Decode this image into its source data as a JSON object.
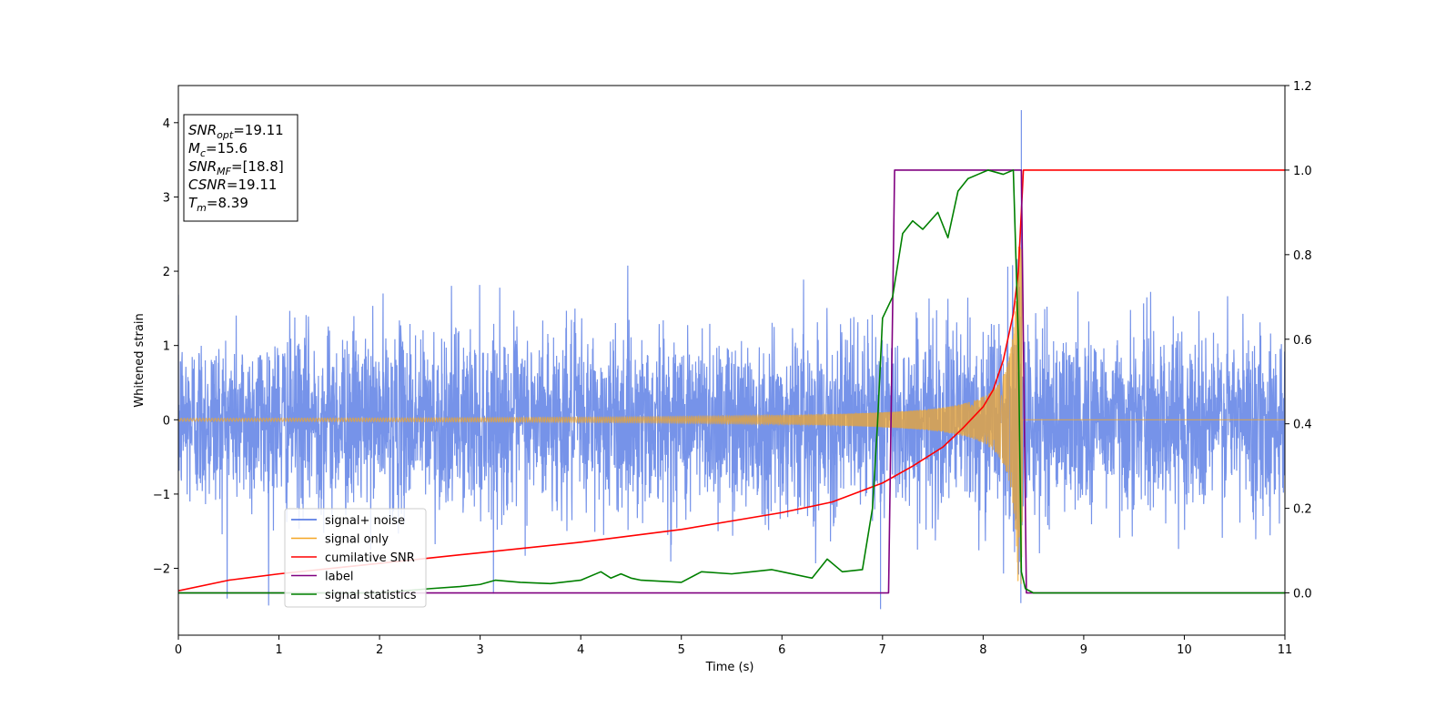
{
  "chart_data": {
    "type": "line",
    "xlabel": "Time (s)",
    "ylabel": "Whitened strain",
    "xlim": [
      0,
      11
    ],
    "ylim_left": [
      -2.9,
      4.5
    ],
    "ylim_right": [
      -0.1,
      1.2
    ],
    "x_ticks": [
      0,
      1,
      2,
      3,
      4,
      5,
      6,
      7,
      8,
      9,
      10,
      11
    ],
    "y_left_ticks": [
      -2,
      -1,
      0,
      1,
      2,
      3,
      4
    ],
    "y_right_ticks": [
      0.0,
      0.2,
      0.4,
      0.6,
      0.8,
      1.0,
      1.2
    ],
    "info_box": {
      "lines": [
        {
          "sym": "SNR",
          "sub": "opt",
          "rest": "=19.11"
        },
        {
          "sym": "M",
          "sub": "c",
          "rest": "=15.6"
        },
        {
          "sym": "SNR",
          "sub": "MF",
          "rest": "=[18.8]"
        },
        {
          "sym": "CSNR",
          "sub": "",
          "rest": "=19.11"
        },
        {
          "sym": "T",
          "sub": "m",
          "rest": "=8.39"
        }
      ]
    },
    "legend": {
      "placement": "lower-left",
      "entries": [
        {
          "label": "signal+ noise",
          "color": "#4169e1"
        },
        {
          "label": "signal only",
          "color": "#f5a623"
        },
        {
          "label": "cumilative SNR",
          "color": "#ff0000"
        },
        {
          "label": "label",
          "color": "#800080"
        },
        {
          "label": "signal statistics",
          "color": "#008000"
        }
      ]
    },
    "series": [
      {
        "name": "signal+ noise",
        "axis": "left",
        "color": "#4169e1",
        "description_values": {
          "noise_std": 0.6,
          "max_spike": 4.17,
          "spike_time": 8.38,
          "min_spike": -2.55
        }
      },
      {
        "name": "signal only",
        "axis": "left",
        "color": "#f5a623",
        "chirp": {
          "start": 0.0,
          "merger_time": 8.39,
          "initial_amplitude": 0.02,
          "peak_amplitude": 2.4
        }
      },
      {
        "name": "cumilative SNR",
        "axis": "right",
        "color": "#ff0000",
        "x": [
          0,
          0.5,
          1,
          2,
          3,
          4,
          5,
          6,
          6.5,
          7,
          7.3,
          7.6,
          7.8,
          8.0,
          8.1,
          8.2,
          8.3,
          8.35,
          8.39,
          8.4,
          11
        ],
        "y": [
          0.005,
          0.03,
          0.045,
          0.07,
          0.095,
          0.12,
          0.15,
          0.19,
          0.215,
          0.26,
          0.3,
          0.345,
          0.39,
          0.44,
          0.48,
          0.55,
          0.66,
          0.76,
          0.95,
          1.0,
          1.0
        ]
      },
      {
        "name": "label",
        "axis": "right",
        "color": "#800080",
        "x": [
          0,
          7.06,
          7.12,
          8.38,
          8.43,
          11
        ],
        "y": [
          0,
          0,
          1,
          1,
          0,
          0
        ]
      },
      {
        "name": "signal statistics",
        "axis": "right",
        "color": "#008000",
        "x": [
          0,
          2.0,
          2.5,
          2.8,
          3.0,
          3.15,
          3.4,
          3.7,
          4.0,
          4.2,
          4.3,
          4.4,
          4.5,
          4.6,
          5.0,
          5.2,
          5.5,
          5.7,
          5.9,
          6.0,
          6.3,
          6.45,
          6.6,
          6.8,
          6.9,
          6.95,
          7.0,
          7.1,
          7.2,
          7.3,
          7.4,
          7.55,
          7.65,
          7.75,
          7.85,
          7.95,
          8.05,
          8.2,
          8.3,
          8.35,
          8.38,
          8.42,
          8.5,
          11
        ],
        "y": [
          0,
          0,
          0.01,
          0.015,
          0.02,
          0.03,
          0.025,
          0.022,
          0.03,
          0.05,
          0.035,
          0.045,
          0.035,
          0.03,
          0.025,
          0.05,
          0.045,
          0.05,
          0.055,
          0.05,
          0.035,
          0.08,
          0.05,
          0.055,
          0.2,
          0.4,
          0.65,
          0.7,
          0.85,
          0.88,
          0.86,
          0.9,
          0.84,
          0.95,
          0.98,
          0.99,
          1.0,
          0.99,
          1.0,
          0.6,
          0.05,
          0.01,
          0,
          0
        ]
      }
    ]
  }
}
